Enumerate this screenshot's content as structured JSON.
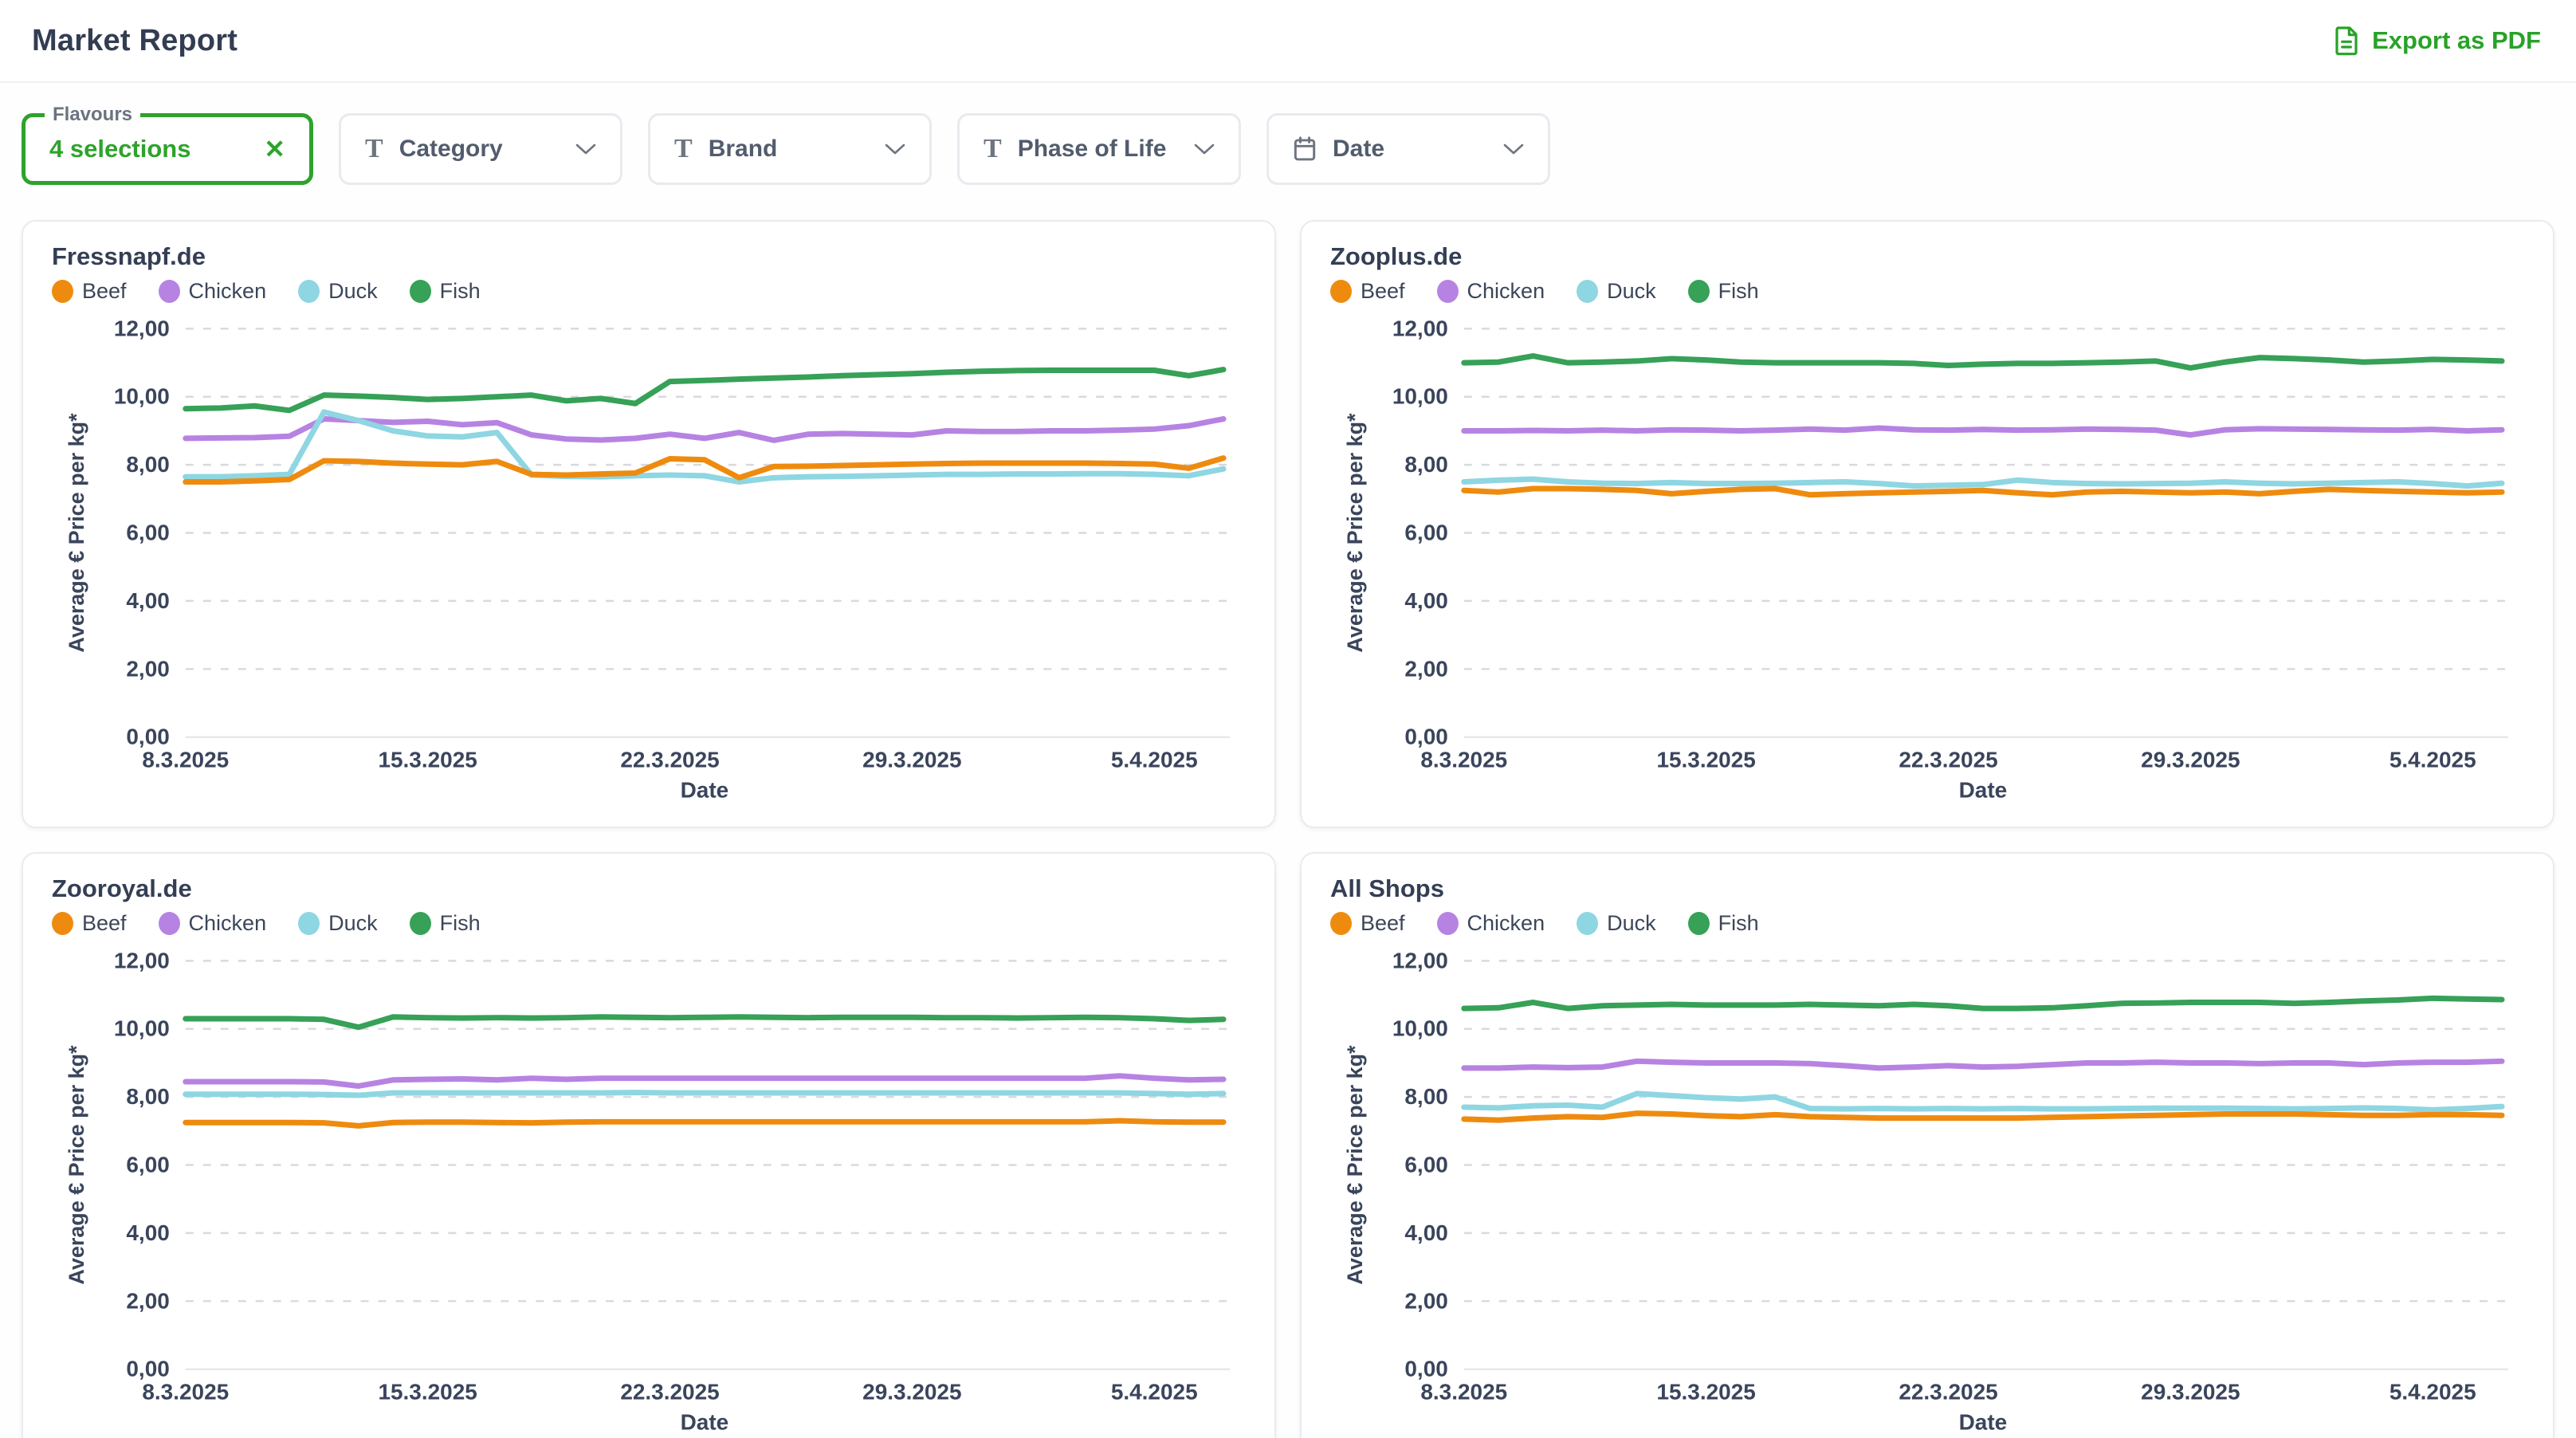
{
  "header": {
    "title": "Market Report",
    "export_label": "Export as PDF"
  },
  "filters": {
    "flavours": {
      "label": "Flavours",
      "value": "4 selections",
      "clear_icon": "✕"
    },
    "chips": [
      {
        "label": "Category",
        "icon": "text-format-icon"
      },
      {
        "label": "Brand",
        "icon": "text-format-icon"
      },
      {
        "label": "Phase of Life",
        "icon": "text-format-icon"
      },
      {
        "label": "Date",
        "icon": "calendar-icon"
      }
    ]
  },
  "colors": {
    "beef": "#EE8B0F",
    "chicken": "#B783E2",
    "duck": "#8ED6E2",
    "fish": "#36A157",
    "accent_green": "#2EA32B",
    "text_navy": "#3A455C",
    "grid": "#D8DADE",
    "baseline": "#E6E8EB"
  },
  "legend": [
    {
      "key": "beef",
      "label": "Beef"
    },
    {
      "key": "chicken",
      "label": "Chicken"
    },
    {
      "key": "duck",
      "label": "Duck"
    },
    {
      "key": "fish",
      "label": "Fish"
    }
  ],
  "chart_data": [
    {
      "type": "line",
      "title": "Fressnapf.de",
      "xlabel": "Date",
      "ylabel": "Average € Price per kg*",
      "ylim": [
        0,
        12
      ],
      "y_tick_step": 2,
      "grid": true,
      "legend_position": "top",
      "x_count": 31,
      "x_ticks": [
        {
          "index": 0,
          "label": "8.3.2025"
        },
        {
          "index": 7,
          "label": "15.3.2025"
        },
        {
          "index": 14,
          "label": "22.3.2025"
        },
        {
          "index": 21,
          "label": "29.3.2025"
        },
        {
          "index": 28,
          "label": "5.4.2025"
        }
      ],
      "series": [
        {
          "name": "Fish",
          "color_key": "fish",
          "values": [
            9.65,
            9.67,
            9.73,
            9.6,
            10.05,
            10.02,
            9.98,
            9.92,
            9.95,
            10.0,
            10.05,
            9.88,
            9.95,
            9.8,
            10.45,
            10.48,
            10.52,
            10.55,
            10.58,
            10.62,
            10.65,
            10.68,
            10.72,
            10.75,
            10.77,
            10.78,
            10.78,
            10.78,
            10.78,
            10.62,
            10.8
          ]
        },
        {
          "name": "Chicken",
          "color_key": "chicken",
          "values": [
            8.78,
            8.79,
            8.8,
            8.84,
            9.35,
            9.3,
            9.25,
            9.28,
            9.18,
            9.24,
            8.88,
            8.76,
            8.73,
            8.78,
            8.9,
            8.78,
            8.95,
            8.72,
            8.9,
            8.92,
            8.9,
            8.88,
            9.0,
            8.98,
            8.98,
            9.0,
            9.0,
            9.02,
            9.05,
            9.15,
            9.35
          ]
        },
        {
          "name": "Duck",
          "color_key": "duck",
          "values": [
            7.65,
            7.65,
            7.68,
            7.72,
            9.55,
            9.3,
            9.0,
            8.85,
            8.82,
            8.95,
            7.7,
            7.66,
            7.65,
            7.68,
            7.7,
            7.68,
            7.5,
            7.62,
            7.65,
            7.66,
            7.68,
            7.7,
            7.72,
            7.72,
            7.73,
            7.73,
            7.74,
            7.74,
            7.72,
            7.68,
            7.88
          ]
        },
        {
          "name": "Beef",
          "color_key": "beef",
          "values": [
            7.5,
            7.5,
            7.53,
            7.57,
            8.12,
            8.1,
            8.05,
            8.02,
            8.0,
            8.1,
            7.72,
            7.7,
            7.73,
            7.76,
            8.18,
            8.15,
            7.62,
            7.95,
            7.96,
            7.98,
            8.0,
            8.02,
            8.04,
            8.05,
            8.05,
            8.05,
            8.05,
            8.04,
            8.02,
            7.9,
            8.2
          ]
        }
      ]
    },
    {
      "type": "line",
      "title": "Zooplus.de",
      "xlabel": "Date",
      "ylabel": "Average € Price per kg*",
      "ylim": [
        0,
        12
      ],
      "y_tick_step": 2,
      "grid": true,
      "legend_position": "top",
      "x_count": 31,
      "x_ticks": [
        {
          "index": 0,
          "label": "8.3.2025"
        },
        {
          "index": 7,
          "label": "15.3.2025"
        },
        {
          "index": 14,
          "label": "22.3.2025"
        },
        {
          "index": 21,
          "label": "29.3.2025"
        },
        {
          "index": 28,
          "label": "5.4.2025"
        }
      ],
      "series": [
        {
          "name": "Fish",
          "color_key": "fish",
          "values": [
            11.0,
            11.02,
            11.2,
            11.0,
            11.02,
            11.05,
            11.12,
            11.08,
            11.02,
            11.0,
            11.0,
            11.0,
            11.0,
            10.98,
            10.92,
            10.96,
            10.98,
            10.98,
            11.0,
            11.02,
            11.05,
            10.85,
            11.02,
            11.15,
            11.12,
            11.08,
            11.02,
            11.05,
            11.1,
            11.08,
            11.05
          ]
        },
        {
          "name": "Chicken",
          "color_key": "chicken",
          "values": [
            9.0,
            9.0,
            9.01,
            9.0,
            9.02,
            9.0,
            9.03,
            9.02,
            9.0,
            9.02,
            9.05,
            9.02,
            9.08,
            9.03,
            9.02,
            9.04,
            9.02,
            9.03,
            9.05,
            9.04,
            9.02,
            8.88,
            9.03,
            9.06,
            9.05,
            9.04,
            9.03,
            9.02,
            9.04,
            9.0,
            9.03
          ]
        },
        {
          "name": "Duck",
          "color_key": "duck",
          "values": [
            7.5,
            7.55,
            7.58,
            7.5,
            7.46,
            7.45,
            7.48,
            7.45,
            7.45,
            7.46,
            7.48,
            7.5,
            7.45,
            7.38,
            7.4,
            7.42,
            7.55,
            7.48,
            7.45,
            7.44,
            7.45,
            7.46,
            7.5,
            7.46,
            7.44,
            7.46,
            7.48,
            7.5,
            7.45,
            7.38,
            7.46
          ]
        },
        {
          "name": "Beef",
          "color_key": "beef",
          "values": [
            7.25,
            7.2,
            7.3,
            7.3,
            7.28,
            7.25,
            7.15,
            7.22,
            7.28,
            7.3,
            7.12,
            7.15,
            7.18,
            7.2,
            7.22,
            7.25,
            7.18,
            7.12,
            7.2,
            7.22,
            7.2,
            7.18,
            7.2,
            7.15,
            7.22,
            7.28,
            7.25,
            7.22,
            7.2,
            7.18,
            7.2
          ]
        }
      ]
    },
    {
      "type": "line",
      "title": "Zooroyal.de",
      "xlabel": "Date",
      "ylabel": "Average € Price per kg*",
      "ylim": [
        0,
        12
      ],
      "y_tick_step": 2,
      "grid": true,
      "legend_position": "top",
      "x_count": 31,
      "x_ticks": [
        {
          "index": 0,
          "label": "8.3.2025"
        },
        {
          "index": 7,
          "label": "15.3.2025"
        },
        {
          "index": 14,
          "label": "22.3.2025"
        },
        {
          "index": 21,
          "label": "29.3.2025"
        },
        {
          "index": 28,
          "label": "5.4.2025"
        }
      ],
      "series": [
        {
          "name": "Fish",
          "color_key": "fish",
          "values": [
            10.3,
            10.3,
            10.3,
            10.3,
            10.28,
            10.05,
            10.35,
            10.33,
            10.32,
            10.33,
            10.32,
            10.33,
            10.35,
            10.34,
            10.33,
            10.34,
            10.35,
            10.34,
            10.33,
            10.34,
            10.34,
            10.34,
            10.33,
            10.33,
            10.32,
            10.33,
            10.34,
            10.33,
            10.3,
            10.25,
            10.28
          ]
        },
        {
          "name": "Chicken",
          "color_key": "chicken",
          "values": [
            8.45,
            8.45,
            8.45,
            8.45,
            8.44,
            8.32,
            8.5,
            8.52,
            8.53,
            8.5,
            8.55,
            8.52,
            8.55,
            8.55,
            8.55,
            8.55,
            8.55,
            8.55,
            8.55,
            8.55,
            8.55,
            8.55,
            8.55,
            8.55,
            8.55,
            8.55,
            8.55,
            8.62,
            8.55,
            8.5,
            8.52
          ]
        },
        {
          "name": "Duck",
          "color_key": "duck",
          "values": [
            8.08,
            8.08,
            8.08,
            8.08,
            8.07,
            8.05,
            8.12,
            8.12,
            8.12,
            8.12,
            8.12,
            8.12,
            8.12,
            8.13,
            8.12,
            8.12,
            8.12,
            8.12,
            8.12,
            8.12,
            8.12,
            8.12,
            8.12,
            8.12,
            8.12,
            8.12,
            8.12,
            8.12,
            8.1,
            8.08,
            8.1
          ]
        },
        {
          "name": "Beef",
          "color_key": "beef",
          "values": [
            7.25,
            7.25,
            7.25,
            7.25,
            7.24,
            7.15,
            7.25,
            7.26,
            7.26,
            7.25,
            7.24,
            7.26,
            7.27,
            7.27,
            7.27,
            7.27,
            7.27,
            7.27,
            7.27,
            7.27,
            7.27,
            7.27,
            7.27,
            7.27,
            7.27,
            7.27,
            7.27,
            7.3,
            7.27,
            7.26,
            7.26
          ]
        }
      ]
    },
    {
      "type": "line",
      "title": "All Shops",
      "xlabel": "Date",
      "ylabel": "Average € Price per kg*",
      "ylim": [
        0,
        12
      ],
      "y_tick_step": 2,
      "grid": true,
      "legend_position": "top",
      "x_count": 31,
      "x_ticks": [
        {
          "index": 0,
          "label": "8.3.2025"
        },
        {
          "index": 7,
          "label": "15.3.2025"
        },
        {
          "index": 14,
          "label": "22.3.2025"
        },
        {
          "index": 21,
          "label": "29.3.2025"
        },
        {
          "index": 28,
          "label": "5.4.2025"
        }
      ],
      "series": [
        {
          "name": "Fish",
          "color_key": "fish",
          "values": [
            10.6,
            10.62,
            10.78,
            10.6,
            10.68,
            10.7,
            10.72,
            10.7,
            10.7,
            10.7,
            10.72,
            10.7,
            10.68,
            10.72,
            10.68,
            10.6,
            10.6,
            10.62,
            10.68,
            10.75,
            10.76,
            10.78,
            10.78,
            10.78,
            10.75,
            10.78,
            10.82,
            10.85,
            10.9,
            10.88,
            10.86
          ]
        },
        {
          "name": "Chicken",
          "color_key": "chicken",
          "values": [
            8.85,
            8.85,
            8.88,
            8.86,
            8.88,
            9.05,
            9.02,
            9.0,
            9.0,
            9.0,
            8.98,
            8.92,
            8.85,
            8.88,
            8.92,
            8.88,
            8.9,
            8.95,
            9.0,
            9.0,
            9.02,
            9.0,
            9.0,
            8.98,
            9.0,
            9.0,
            8.95,
            9.0,
            9.02,
            9.02,
            9.05
          ]
        },
        {
          "name": "Duck",
          "color_key": "duck",
          "values": [
            7.7,
            7.68,
            7.74,
            7.76,
            7.7,
            8.1,
            8.04,
            7.98,
            7.94,
            8.0,
            7.66,
            7.65,
            7.66,
            7.65,
            7.66,
            7.65,
            7.66,
            7.65,
            7.65,
            7.66,
            7.67,
            7.67,
            7.67,
            7.66,
            7.65,
            7.66,
            7.68,
            7.66,
            7.62,
            7.66,
            7.72
          ]
        },
        {
          "name": "Beef",
          "color_key": "beef",
          "values": [
            7.35,
            7.32,
            7.38,
            7.42,
            7.4,
            7.52,
            7.5,
            7.45,
            7.42,
            7.48,
            7.42,
            7.4,
            7.38,
            7.38,
            7.38,
            7.38,
            7.38,
            7.4,
            7.42,
            7.44,
            7.46,
            7.48,
            7.5,
            7.5,
            7.5,
            7.48,
            7.46,
            7.46,
            7.48,
            7.48,
            7.46
          ]
        }
      ]
    }
  ]
}
